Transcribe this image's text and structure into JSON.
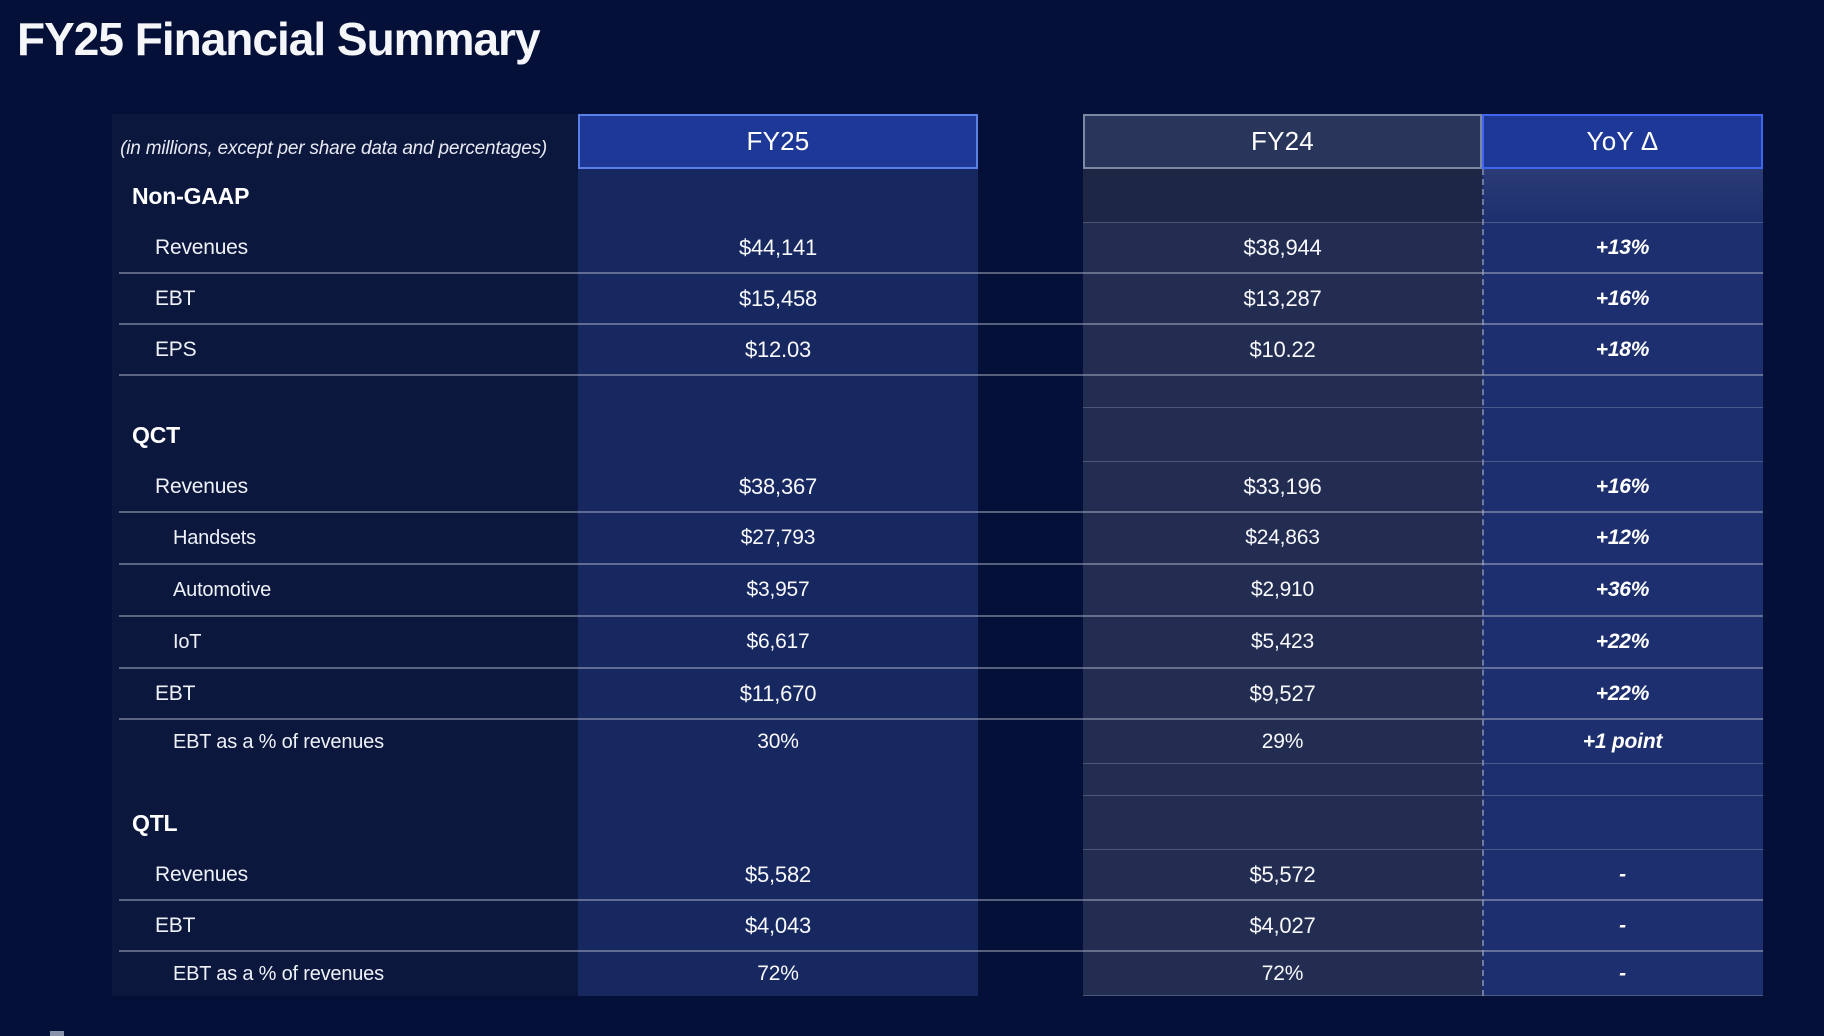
{
  "page": {
    "title": "FY25 Financial Summary"
  },
  "table": {
    "caption": "(in millions, except per share data and percentages)",
    "columns": [
      {
        "key": "fy25",
        "label": "FY25"
      },
      {
        "key": "fy24",
        "label": "FY24"
      },
      {
        "key": "yoy",
        "label": "YoY Δ"
      }
    ],
    "sections": [
      {
        "heading": "Non-GAAP",
        "rows": [
          {
            "label": "Revenues",
            "fy25": "$44,141",
            "fy24": "$38,944",
            "yoy": "+13%",
            "type": "data",
            "separator": true
          },
          {
            "label": "EBT",
            "fy25": "$15,458",
            "fy24": "$13,287",
            "yoy": "+16%",
            "type": "data",
            "separator": true
          },
          {
            "label": "EPS",
            "fy25": "$12.03",
            "fy24": "$10.22",
            "yoy": "+18%",
            "type": "data",
            "separator": true
          }
        ]
      },
      {
        "heading": "QCT",
        "rows": [
          {
            "label": "Revenues",
            "fy25": "$38,367",
            "fy24": "$33,196",
            "yoy": "+16%",
            "type": "data",
            "separator": true
          },
          {
            "label": "Handsets",
            "fy25": "$27,793",
            "fy24": "$24,863",
            "yoy": "+12%",
            "type": "sub",
            "separator": true
          },
          {
            "label": "Automotive",
            "fy25": "$3,957",
            "fy24": "$2,910",
            "yoy": "+36%",
            "type": "sub",
            "separator": true
          },
          {
            "label": "IoT",
            "fy25": "$6,617",
            "fy24": "$5,423",
            "yoy": "+22%",
            "type": "sub",
            "separator": true
          },
          {
            "label": "EBT",
            "fy25": "$11,670",
            "fy24": "$9,527",
            "yoy": "+22%",
            "type": "data",
            "separator": true
          },
          {
            "label": "EBT as a % of revenues",
            "fy25": "30%",
            "fy24": "29%",
            "yoy": "+1 point",
            "type": "pct",
            "separator": false
          }
        ]
      },
      {
        "heading": "QTL",
        "rows": [
          {
            "label": "Revenues",
            "fy25": "$5,582",
            "fy24": "$5,572",
            "yoy": "-",
            "type": "data",
            "separator": true
          },
          {
            "label": "EBT",
            "fy25": "$4,043",
            "fy24": "$4,027",
            "yoy": "-",
            "type": "data",
            "separator": true
          },
          {
            "label": "EBT as a % of revenues",
            "fy25": "72%",
            "fy24": "72%",
            "yoy": "-",
            "type": "pct",
            "separator": false
          }
        ]
      }
    ]
  },
  "colors": {
    "background": "#051038",
    "fy25_panel": "#172760",
    "fy24_panel": "#232d52",
    "yoy_panel": "#1d2f6e",
    "header_blue": "#1e3898",
    "header_blue_border": "#5b80e8",
    "yoy_header_border": "#3f66ef",
    "fy24_header": "#2a355c",
    "fy24_header_border": "#7d88a3",
    "separator": "rgba(170,178,196,0.5)"
  }
}
